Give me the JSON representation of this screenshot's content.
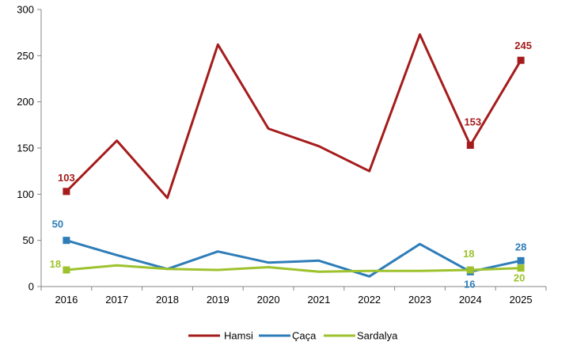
{
  "chart_data": {
    "type": "line",
    "title": "",
    "xlabel": "",
    "ylabel": "",
    "x": [
      "2016",
      "2017",
      "2018",
      "2019",
      "2020",
      "2021",
      "2022",
      "2023",
      "2024",
      "2025"
    ],
    "ylim": [
      0,
      300
    ],
    "yticks": [
      "0",
      "50",
      "100",
      "150",
      "200",
      "250",
      "300"
    ],
    "grid": false,
    "legend": "bottom",
    "series": [
      {
        "name": "Hamsi",
        "color": "#A51C1C",
        "values": [
          103,
          158,
          96,
          262,
          171,
          152,
          125,
          273,
          153,
          245
        ],
        "labels": [
          {
            "index": 0,
            "text": "103"
          },
          {
            "index": 8,
            "text": "153"
          },
          {
            "index": 9,
            "text": "245"
          }
        ]
      },
      {
        "name": "Çaça",
        "color": "#2E7DB8",
        "values": [
          50,
          34,
          19,
          38,
          26,
          28,
          11,
          46,
          16,
          28
        ],
        "labels": [
          {
            "index": 0,
            "text": "50"
          },
          {
            "index": 8,
            "text": "16"
          },
          {
            "index": 9,
            "text": "28"
          }
        ]
      },
      {
        "name": "Sardalya",
        "color": "#9DC22D",
        "values": [
          18,
          23,
          19,
          18,
          21,
          16,
          17,
          17,
          18,
          20
        ],
        "labels": [
          {
            "index": 0,
            "text": "18"
          },
          {
            "index": 8,
            "text": "18"
          },
          {
            "index": 9,
            "text": "20"
          }
        ]
      }
    ]
  }
}
